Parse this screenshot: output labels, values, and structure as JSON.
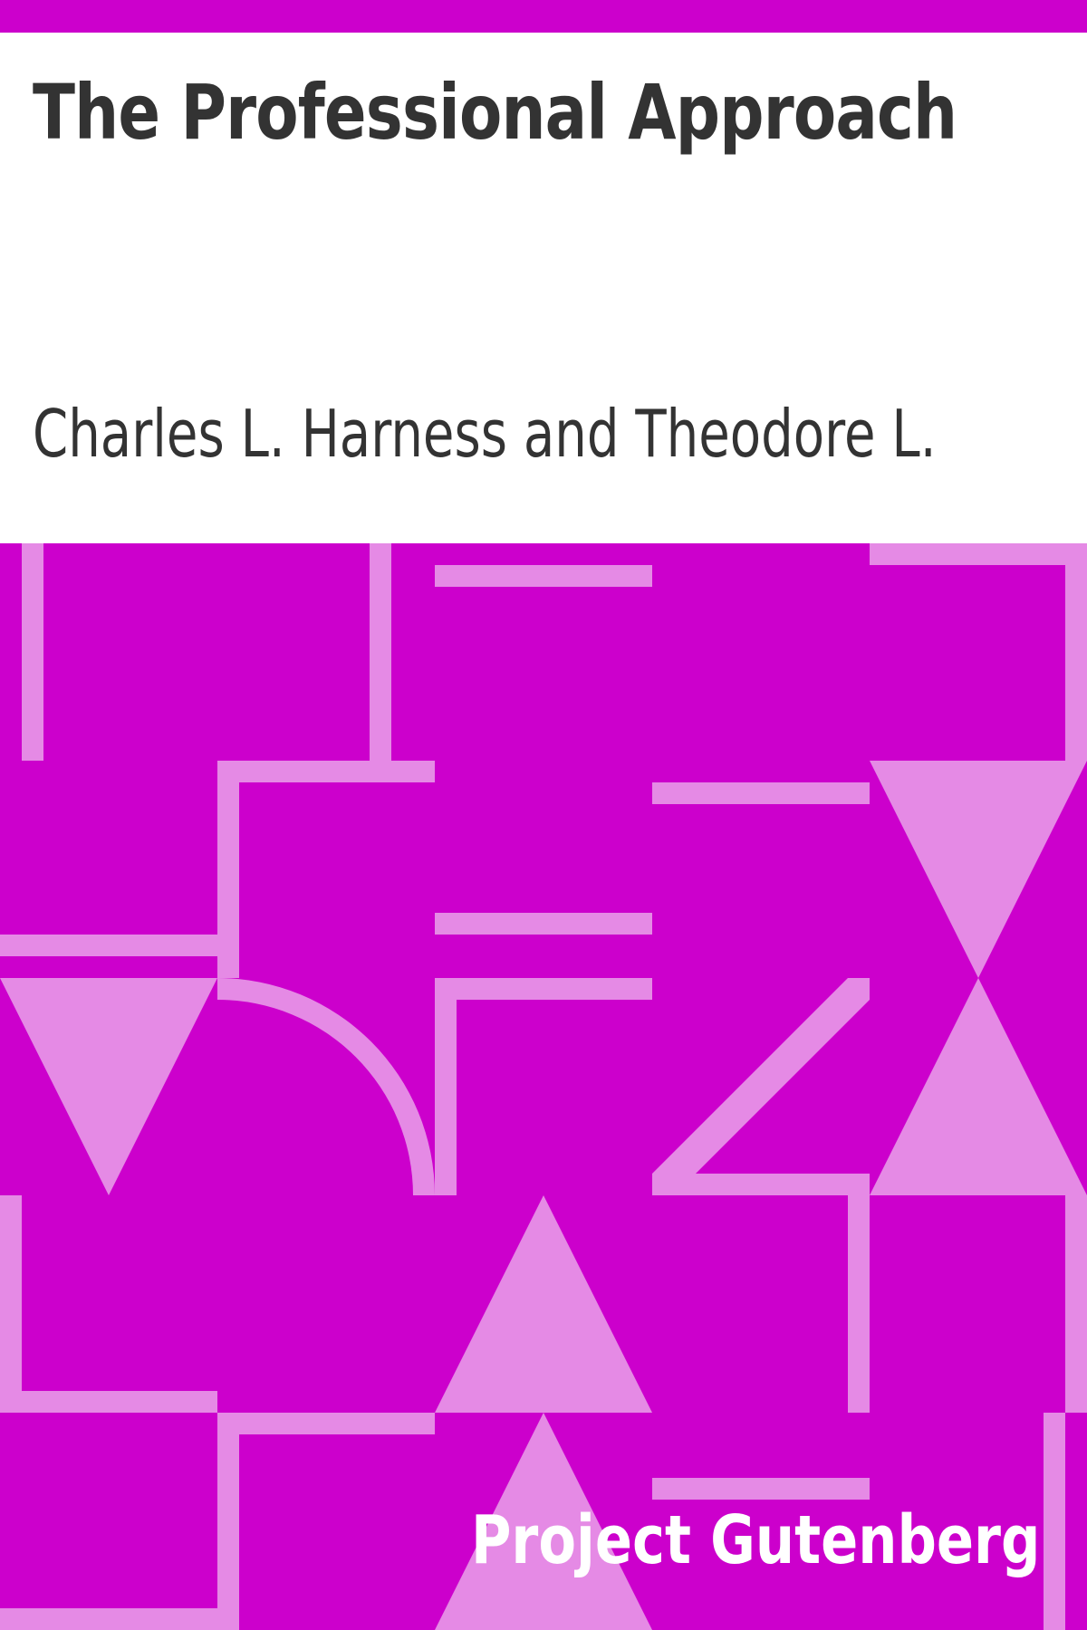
{
  "book": {
    "title": "The Professional Approach",
    "author": "Charles L. Harness and Theodore L.",
    "publisher": "Project Gutenberg"
  },
  "colors": {
    "accent": "#cc00cc",
    "pattern_light": "#e58ae5",
    "text": "#333333",
    "background": "#ffffff"
  }
}
